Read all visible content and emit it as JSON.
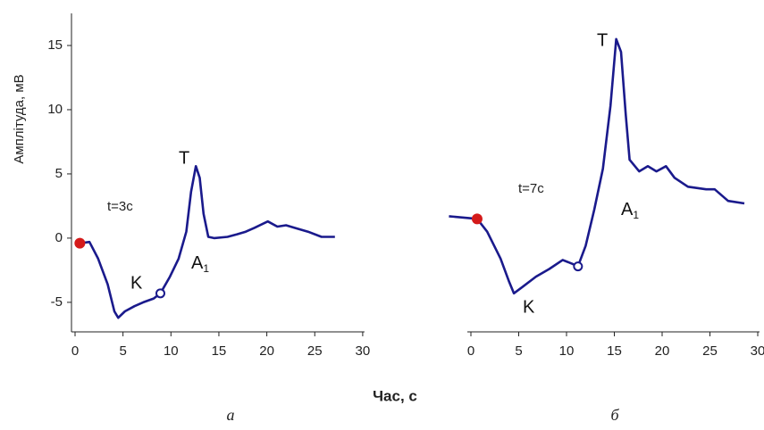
{
  "figure": {
    "xlabel": "Час, с"
  },
  "chart_data": [
    {
      "type": "line",
      "panel_label": "а",
      "ylabel": "Амплітуда, мВ",
      "note": "t=3с",
      "annotations": [
        "T",
        "K",
        {
          "text": "A",
          "sub": "1"
        }
      ],
      "xlim": [
        0,
        30
      ],
      "xticks": [
        0,
        5,
        10,
        15,
        20,
        25,
        30
      ],
      "ylim": [
        -7.3,
        17.5
      ],
      "yticks": [
        -5,
        0,
        5,
        10,
        15
      ],
      "show_yaxis": true,
      "x": [
        0.5,
        1.5,
        2.4,
        3.4,
        4.1,
        4.5,
        5.2,
        6.2,
        7.1,
        8.2,
        8.9,
        9.9,
        10.8,
        11.6,
        12.1,
        12.6,
        13.0,
        13.4,
        13.9,
        14.5,
        15.9,
        16.9,
        17.8,
        18.7,
        20.1,
        21.1,
        22.0,
        22.9,
        24.3,
        25.7,
        27.1
      ],
      "series": [
        {
          "color": "#1a1a8c",
          "values": [
            -0.4,
            -0.3,
            -1.6,
            -3.6,
            -5.7,
            -6.2,
            -5.7,
            -5.3,
            -5.0,
            -4.7,
            -4.3,
            -3.0,
            -1.6,
            0.5,
            3.6,
            5.6,
            4.7,
            1.9,
            0.1,
            0.0,
            0.1,
            0.3,
            0.5,
            0.8,
            1.3,
            0.9,
            1.0,
            0.8,
            0.5,
            0.1,
            0.1
          ]
        }
      ],
      "markers": [
        {
          "x": 0.5,
          "y": -0.4,
          "color": "#d41a1a",
          "filled": true
        },
        {
          "x": 8.9,
          "y": -4.3,
          "color": "#1a1a8c",
          "filled": false
        }
      ]
    },
    {
      "type": "line",
      "panel_label": "б",
      "note": "t=7с",
      "annotations": [
        "T",
        "K",
        {
          "text": "A",
          "sub": "1"
        }
      ],
      "xlim": [
        0,
        30
      ],
      "xticks": [
        0,
        5,
        10,
        15,
        20,
        25,
        30
      ],
      "ylim": [
        -7.3,
        17.5
      ],
      "show_yaxis": false,
      "x": [
        -2.3,
        0.65,
        1.7,
        3.1,
        4.0,
        4.5,
        5.4,
        6.8,
        8.2,
        9.6,
        10.6,
        11.2,
        12.0,
        12.9,
        13.8,
        14.6,
        15.2,
        15.7,
        16.2,
        16.6,
        17.6,
        18.5,
        19.4,
        20.4,
        21.3,
        22.7,
        24.6,
        25.5,
        26.9,
        28.6
      ],
      "series": [
        {
          "color": "#1a1a8c",
          "values": [
            1.7,
            1.5,
            0.5,
            -1.6,
            -3.4,
            -4.3,
            -3.8,
            -3.0,
            -2.4,
            -1.7,
            -2.0,
            -2.2,
            -0.6,
            2.2,
            5.4,
            10.3,
            15.5,
            14.5,
            9.6,
            6.1,
            5.2,
            5.6,
            5.2,
            5.6,
            4.7,
            4.0,
            3.8,
            3.8,
            2.9,
            2.7
          ]
        }
      ],
      "markers": [
        {
          "x": 0.65,
          "y": 1.5,
          "color": "#d41a1a",
          "filled": true
        },
        {
          "x": 11.2,
          "y": -2.2,
          "color": "#1a1a8c",
          "filled": false
        }
      ]
    }
  ]
}
